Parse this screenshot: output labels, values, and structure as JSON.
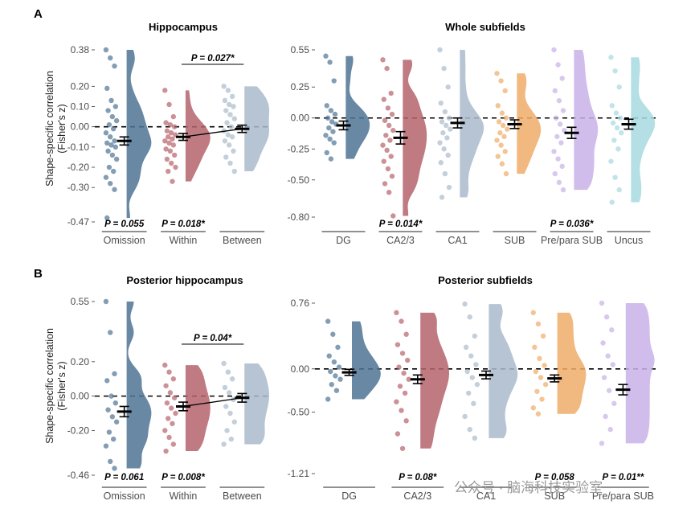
{
  "figure": {
    "panel_a_letter": "A",
    "panel_b_letter": "B",
    "ylabel_line1": "Shape-specific correlation",
    "ylabel_line2": "(Fisher's z)",
    "watermark": "公众号 · 脑海科技实验室"
  },
  "chart_data": [
    {
      "id": "A1",
      "type": "raincloud",
      "title": "Hippocampus",
      "ylim": [
        -0.47,
        0.38
      ],
      "yticks": [
        0.38,
        0.2,
        0.1,
        0.0,
        -0.1,
        -0.2,
        -0.3,
        -0.47
      ],
      "ytick_labels": [
        "0.38",
        "0.20",
        "0.10",
        "0.00",
        "-0.10",
        "-0.20",
        "-0.30",
        "-0.47"
      ],
      "reference_line": 0,
      "color_by_category": [
        "#4f7394",
        "#b5636b",
        "#a9bacb"
      ],
      "categories": [
        "Omission",
        "Within",
        "Between"
      ],
      "means": [
        -0.07,
        -0.05,
        -0.01
      ],
      "errors": [
        0.02,
        0.017,
        0.018
      ],
      "connected_means": [
        1,
        2
      ],
      "bottom_annotations": [
        "P = 0.055",
        "P = 0.018*",
        ""
      ],
      "bracket": {
        "from": 1,
        "to": 2,
        "label": "P = 0.027*"
      },
      "points": [
        [
          0.38,
          0.34,
          0.3,
          0.19,
          0.13,
          0.1,
          0.08,
          0.05,
          0.03,
          0.01,
          -0.01,
          -0.03,
          -0.05,
          -0.07,
          -0.08,
          -0.09,
          -0.1,
          -0.12,
          -0.14,
          -0.16,
          -0.2,
          -0.22,
          -0.25,
          -0.28,
          -0.31,
          -0.45
        ],
        [
          0.18,
          0.11,
          0.05,
          0.02,
          0.01,
          0,
          -0.02,
          -0.03,
          -0.04,
          -0.05,
          -0.06,
          -0.07,
          -0.08,
          -0.09,
          -0.11,
          -0.12,
          -0.14,
          -0.16,
          -0.18,
          -0.2,
          -0.22,
          -0.27
        ],
        [
          0.2,
          0.18,
          0.15,
          0.13,
          0.11,
          0.1,
          0.08,
          0.06,
          0.04,
          0.02,
          0,
          -0.02,
          -0.04,
          -0.05,
          -0.07,
          -0.09,
          -0.12,
          -0.15,
          -0.18,
          -0.22
        ]
      ]
    },
    {
      "id": "A2",
      "type": "raincloud",
      "title": "Whole subfields",
      "ylim": [
        -0.8,
        0.55
      ],
      "yticks": [
        0.55,
        0.25,
        0.0,
        -0.25,
        -0.5,
        -0.8
      ],
      "ytick_labels": [
        "0.55",
        "0.25",
        "0.00",
        "-0.25",
        "-0.50",
        "-0.80"
      ],
      "reference_line": 0,
      "color_by_category": [
        "#4f7394",
        "#b5636b",
        "#a9bacb",
        "#eeac68",
        "#c9b1e7",
        "#a6d9e1"
      ],
      "categories": [
        "DG",
        "CA2/3",
        "CA1",
        "SUB",
        "Pre/para SUB",
        "Uncus"
      ],
      "means": [
        -0.06,
        -0.16,
        -0.04,
        -0.05,
        -0.12,
        -0.05
      ],
      "errors": [
        0.035,
        0.05,
        0.04,
        0.035,
        0.045,
        0.04
      ],
      "connected_means": [],
      "bottom_annotations": [
        "",
        "P = 0.014*",
        "",
        "",
        "P = 0.036*",
        ""
      ],
      "bracket": null,
      "points": [
        [
          0.5,
          0.45,
          0.3,
          0.1,
          0.06,
          0.03,
          0.0,
          -0.03,
          -0.05,
          -0.08,
          -0.11,
          -0.14,
          -0.17,
          -0.2,
          -0.28,
          -0.33
        ],
        [
          0.47,
          0.4,
          0.2,
          0.15,
          0.08,
          0.03,
          -0.02,
          -0.06,
          -0.1,
          -0.14,
          -0.18,
          -0.22,
          -0.26,
          -0.31,
          -0.35,
          -0.41,
          -0.47,
          -0.53,
          -0.6,
          -0.79
        ],
        [
          0.55,
          0.4,
          0.25,
          0.12,
          0.05,
          0.0,
          -0.03,
          -0.06,
          -0.09,
          -0.12,
          -0.16,
          -0.2,
          -0.25,
          -0.3,
          -0.36,
          -0.45,
          -0.56,
          -0.64
        ],
        [
          0.36,
          0.3,
          0.22,
          0.1,
          0.04,
          0.0,
          -0.03,
          -0.06,
          -0.09,
          -0.12,
          -0.15,
          -0.18,
          -0.22,
          -0.27,
          -0.31,
          -0.37,
          -0.45
        ],
        [
          0.55,
          0.43,
          0.32,
          0.22,
          0.14,
          0.06,
          0.0,
          -0.05,
          -0.1,
          -0.15,
          -0.2,
          -0.27,
          -0.33,
          -0.39,
          -0.45,
          -0.52,
          -0.58
        ],
        [
          0.49,
          0.38,
          0.25,
          0.1,
          0.04,
          0.0,
          -0.04,
          -0.08,
          -0.12,
          -0.18,
          -0.25,
          -0.35,
          -0.48,
          -0.58,
          -0.68
        ]
      ]
    },
    {
      "id": "B1",
      "type": "raincloud",
      "title": "Posterior hippocampus",
      "ylim": [
        -0.46,
        0.55
      ],
      "yticks": [
        0.55,
        0.2,
        0.0,
        -0.2,
        -0.46
      ],
      "ytick_labels": [
        "0.55",
        "0.20",
        "0.00",
        "-0.20",
        "-0.46"
      ],
      "reference_line": 0,
      "color_by_category": [
        "#4f7394",
        "#b5636b",
        "#a9bacb"
      ],
      "categories": [
        "Omission",
        "Within",
        "Between"
      ],
      "means": [
        -0.09,
        -0.06,
        -0.01
      ],
      "errors": [
        0.03,
        0.025,
        0.025
      ],
      "connected_means": [
        1,
        2
      ],
      "bottom_annotations": [
        "P = 0.061",
        "P = 0.008*",
        ""
      ],
      "bracket": {
        "from": 1,
        "to": 2,
        "label": "P = 0.04*"
      },
      "points": [
        [
          0.55,
          0.37,
          0.13,
          0.09,
          0.0,
          -0.04,
          -0.08,
          -0.12,
          -0.15,
          -0.21,
          -0.25,
          -0.29,
          -0.38,
          -0.42
        ],
        [
          0.18,
          0.14,
          0.1,
          0.06,
          0.02,
          -0.01,
          -0.04,
          -0.07,
          -0.1,
          -0.13,
          -0.16,
          -0.2,
          -0.24,
          -0.28,
          -0.32
        ],
        [
          0.19,
          0.14,
          0.1,
          0.05,
          0.02,
          -0.02,
          -0.06,
          -0.1,
          -0.15,
          -0.2,
          -0.25,
          -0.28
        ]
      ]
    },
    {
      "id": "B2",
      "type": "raincloud",
      "title": "Posterior subfields",
      "ylim": [
        -1.21,
        0.76
      ],
      "yticks": [
        0.76,
        0.0,
        -0.5,
        -1.21
      ],
      "ytick_labels": [
        "0.76",
        "0.00",
        "-0.50",
        "-1.21"
      ],
      "reference_line": 0,
      "color_by_category": [
        "#4f7394",
        "#b5636b",
        "#a9bacb",
        "#eeac68",
        "#c9b1e7"
      ],
      "categories": [
        "DG",
        "CA2/3",
        "CA1",
        "SUB",
        "Pre/para SUB"
      ],
      "means": [
        -0.04,
        -0.12,
        -0.07,
        -0.11,
        -0.24
      ],
      "errors": [
        0.035,
        0.05,
        0.045,
        0.04,
        0.06
      ],
      "connected_means": [],
      "bottom_annotations": [
        "",
        "P = 0.08*",
        "",
        "P = 0.058",
        "P = 0.01**"
      ],
      "bracket": null,
      "points": [
        [
          0.55,
          0.4,
          0.25,
          0.15,
          0.08,
          0.02,
          -0.03,
          -0.08,
          -0.12,
          -0.18,
          -0.25,
          -0.35
        ],
        [
          0.65,
          0.55,
          0.4,
          0.28,
          0.18,
          0.1,
          0.02,
          -0.05,
          -0.12,
          -0.2,
          -0.28,
          -0.38,
          -0.48,
          -0.6,
          -0.75,
          -0.92
        ],
        [
          0.75,
          0.6,
          0.38,
          0.25,
          0.15,
          0.05,
          -0.03,
          -0.1,
          -0.18,
          -0.28,
          -0.4,
          -0.55,
          -0.7,
          -0.8
        ],
        [
          0.65,
          0.52,
          0.38,
          0.25,
          0.12,
          0.04,
          -0.03,
          -0.1,
          -0.18,
          -0.26,
          -0.35,
          -0.45,
          -0.52
        ],
        [
          0.76,
          0.6,
          0.45,
          0.3,
          0.15,
          0.05,
          -0.1,
          -0.25,
          -0.4,
          -0.55,
          -0.7,
          -0.86
        ]
      ]
    }
  ]
}
